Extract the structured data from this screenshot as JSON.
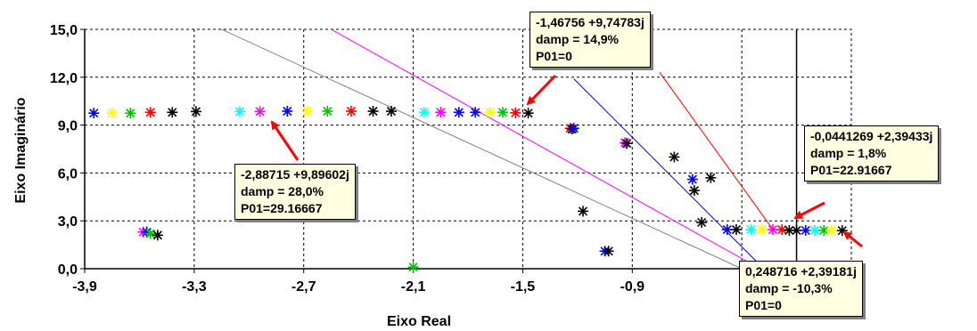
{
  "chart_data": {
    "type": "scatter",
    "title": "",
    "xlabel": "Eixo Real",
    "ylabel": "Eixo Imaginário",
    "xlim": [
      -3.9,
      0.3
    ],
    "ylim": [
      0,
      15
    ],
    "x_ticks": [
      "-3,9",
      "-3,3",
      "-2,7",
      "-2,1",
      "-1,5",
      "-0,9"
    ],
    "x_tick_values": [
      -3.9,
      -3.3,
      -2.7,
      -2.1,
      -1.5,
      -0.9
    ],
    "y_ticks": [
      "0,0",
      "3,0",
      "6,0",
      "9,0",
      "12,0",
      "15,0"
    ],
    "y_tick_values": [
      0,
      3,
      6,
      9,
      12,
      15
    ],
    "grid": "dotted",
    "marker": "asterisk",
    "points": [
      {
        "x": -3.85,
        "y": 9.75,
        "color": "#0000ff"
      },
      {
        "x": -3.75,
        "y": 9.75,
        "color": "#ffff00"
      },
      {
        "x": -3.65,
        "y": 9.75,
        "color": "#00c000"
      },
      {
        "x": -3.54,
        "y": 9.8,
        "color": "#ff0000"
      },
      {
        "x": -3.42,
        "y": 9.8,
        "color": "#000000"
      },
      {
        "x": -3.29,
        "y": 9.85,
        "color": "#000000"
      },
      {
        "x": -3.05,
        "y": 9.85,
        "color": "#00ffff"
      },
      {
        "x": -2.94,
        "y": 9.85,
        "color": "#ff00ff"
      },
      {
        "x": -2.79,
        "y": 9.87,
        "color": "#0000ff"
      },
      {
        "x": -2.68,
        "y": 9.87,
        "color": "#ffff00"
      },
      {
        "x": -2.57,
        "y": 9.87,
        "color": "#00c000"
      },
      {
        "x": -2.44,
        "y": 9.87,
        "color": "#ff0000"
      },
      {
        "x": -2.32,
        "y": 9.87,
        "color": "#000000"
      },
      {
        "x": -2.22,
        "y": 9.87,
        "color": "#000000"
      },
      {
        "x": -2.04,
        "y": 9.8,
        "color": "#00ffff"
      },
      {
        "x": -1.95,
        "y": 9.8,
        "color": "#ff00ff"
      },
      {
        "x": -1.85,
        "y": 9.8,
        "color": "#0000ff"
      },
      {
        "x": -1.76,
        "y": 9.8,
        "color": "#0000ff"
      },
      {
        "x": -1.68,
        "y": 9.8,
        "color": "#ffff00"
      },
      {
        "x": -1.61,
        "y": 9.8,
        "color": "#00c000"
      },
      {
        "x": -1.54,
        "y": 9.77,
        "color": "#ff0000"
      },
      {
        "x": -1.47,
        "y": 9.75,
        "color": "#000000"
      },
      {
        "x": -1.24,
        "y": 8.8,
        "color": "#ff0000"
      },
      {
        "x": -1.23,
        "y": 8.75,
        "color": "#000000"
      },
      {
        "x": -1.22,
        "y": 8.8,
        "color": "#0000ff"
      },
      {
        "x": -0.94,
        "y": 7.9,
        "color": "#ff00ff"
      },
      {
        "x": -0.93,
        "y": 7.85,
        "color": "#000000"
      },
      {
        "x": -0.67,
        "y": 7.0,
        "color": "#000000"
      },
      {
        "x": -0.57,
        "y": 5.6,
        "color": "#0000ff"
      },
      {
        "x": -0.47,
        "y": 5.7,
        "color": "#000000"
      },
      {
        "x": -0.56,
        "y": 4.9,
        "color": "#000000"
      },
      {
        "x": -1.17,
        "y": 3.6,
        "color": "#000000"
      },
      {
        "x": -0.52,
        "y": 2.9,
        "color": "#000000"
      },
      {
        "x": -3.58,
        "y": 2.3,
        "color": "#ff00ff"
      },
      {
        "x": -3.56,
        "y": 2.3,
        "color": "#0000ff"
      },
      {
        "x": -3.54,
        "y": 2.2,
        "color": "#00c000"
      },
      {
        "x": -3.5,
        "y": 2.1,
        "color": "#000000"
      },
      {
        "x": -2.1,
        "y": 0.1,
        "color": "#00c000"
      },
      {
        "x": -1.05,
        "y": 1.1,
        "color": "#0000ff"
      },
      {
        "x": -1.03,
        "y": 1.1,
        "color": "#000000"
      },
      {
        "x": -0.38,
        "y": 2.45,
        "color": "#0000ff"
      },
      {
        "x": -0.33,
        "y": 2.45,
        "color": "#000000"
      },
      {
        "x": -0.25,
        "y": 2.45,
        "color": "#00ffff"
      },
      {
        "x": -0.19,
        "y": 2.45,
        "color": "#ffff00"
      },
      {
        "x": -0.13,
        "y": 2.45,
        "color": "#ff00ff"
      },
      {
        "x": -0.08,
        "y": 2.45,
        "color": "#ff0000"
      },
      {
        "x": -0.04,
        "y": 2.4,
        "color": "#000000"
      },
      {
        "x": 0.0,
        "y": 2.4,
        "color": "#000000"
      },
      {
        "x": 0.05,
        "y": 2.4,
        "color": "#0000ff"
      },
      {
        "x": 0.1,
        "y": 2.4,
        "color": "#00ffff"
      },
      {
        "x": 0.15,
        "y": 2.4,
        "color": "#00c000"
      },
      {
        "x": 0.19,
        "y": 2.4,
        "color": "#ffff00"
      },
      {
        "x": 0.25,
        "y": 2.39,
        "color": "#000000"
      }
    ],
    "damping_lines": [
      {
        "color": "#808080",
        "from": [
          -3.15,
          15.0
        ],
        "to": [
          -0.3,
          0.0
        ]
      },
      {
        "color": "#ff00ff",
        "from": [
          -2.55,
          15.0
        ],
        "to": [
          -0.2,
          0.0
        ]
      },
      {
        "color": "#0000ff",
        "from": [
          -1.22,
          11.9
        ],
        "to": [
          -0.18,
          0.0
        ]
      },
      {
        "color": "#ff0000",
        "from": [
          -0.75,
          12.3
        ],
        "to": [
          -0.12,
          2.3
        ]
      }
    ],
    "annotations": [
      {
        "lines": [
          "-1,46756 +9,74783j",
          "damp = 14,9%",
          "P01=0"
        ],
        "point": [
          -1.47,
          9.75
        ]
      },
      {
        "lines": [
          "-2,88715 +9,89602j",
          "damp = 28,0%",
          "P01=29.16667"
        ],
        "point": [
          -2.89,
          9.9
        ]
      },
      {
        "lines": [
          "-0,0441269 +2,39433j",
          "damp = 1,8%",
          "P01=22.91667"
        ],
        "point": [
          -0.04,
          2.39
        ]
      },
      {
        "lines": [
          "0,248716 +2,39181j",
          "damp = -10,3%",
          "P01=0"
        ],
        "point": [
          0.25,
          2.39
        ]
      }
    ]
  }
}
